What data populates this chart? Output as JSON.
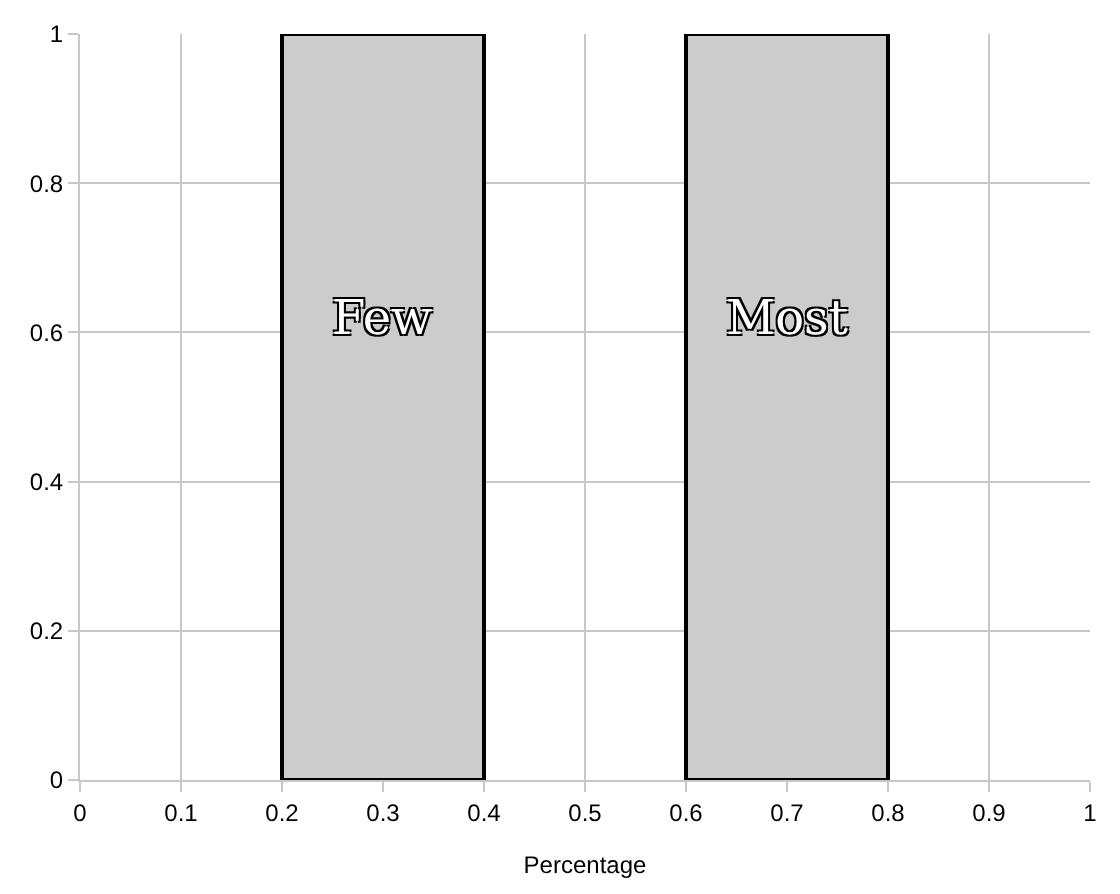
{
  "chart_data": {
    "type": "histogram",
    "xlabel": "Percentage",
    "bins": [
      0.2,
      0.4,
      0.6,
      0.8
    ],
    "values": [
      1,
      null,
      1
    ],
    "color": "#cccccc",
    "annotations": [
      "Few",
      "Most"
    ],
    "xlim": [
      0,
      1
    ],
    "xticks": [
      0,
      0.1,
      0.2,
      0.3,
      0.4,
      0.5,
      0.6,
      0.7,
      0.8,
      0.9,
      1
    ],
    "ylim": [
      0,
      1
    ],
    "yticks": [
      0,
      0.2,
      0.4,
      0.6,
      0.8,
      1
    ],
    "grid": true
  }
}
